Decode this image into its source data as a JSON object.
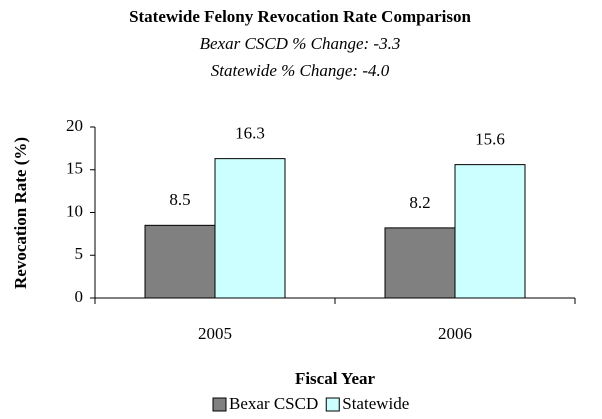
{
  "chart_data": {
    "type": "bar",
    "title": "Statewide Felony Revocation Rate Comparison",
    "subtitles": [
      "Bexar CSCD % Change: -3.3",
      "Statewide % Change: -4.0"
    ],
    "x_label": "Fiscal Year",
    "y_label": "Revocation Rate (%)",
    "categories": [
      "2005",
      "2006"
    ],
    "series": [
      {
        "name": "Bexar CSCD",
        "color": "#808080",
        "values": [
          8.5,
          8.2
        ]
      },
      {
        "name": "Statewide",
        "color": "#ccffff",
        "values": [
          16.3,
          15.6
        ]
      }
    ],
    "ylim": [
      0,
      20
    ],
    "yticks": [
      0,
      5,
      10,
      15,
      20
    ],
    "grid": false,
    "legend": "bottom"
  }
}
